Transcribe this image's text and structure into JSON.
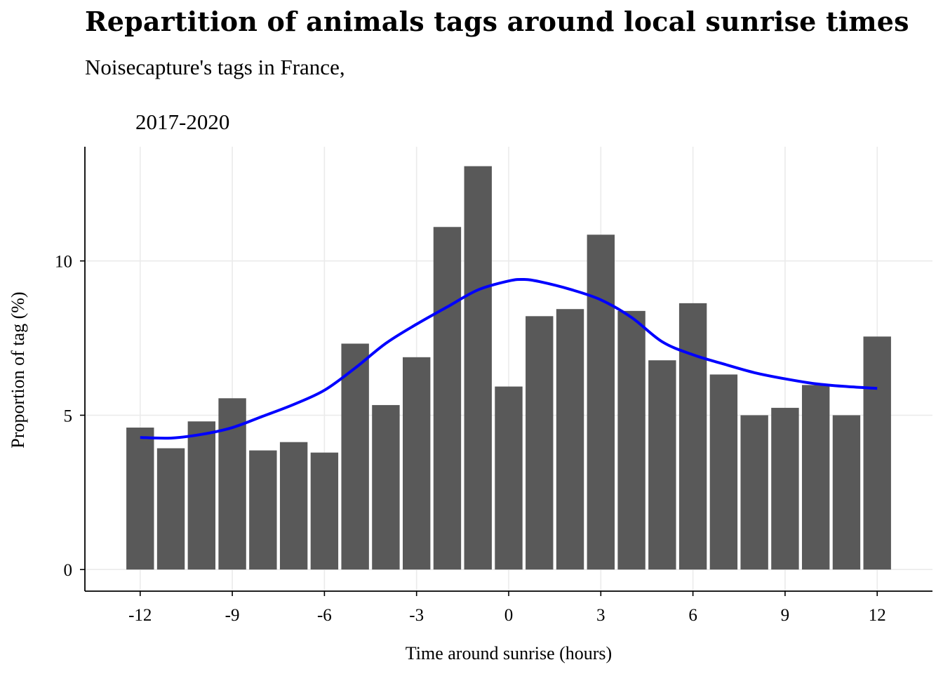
{
  "header": {
    "title": "Repartition of animals tags around local sunrise times",
    "subtitle_line1": "Noisecapture's tags in France,",
    "subtitle_line2": "2017-2020"
  },
  "colors": {
    "bar": "#595959",
    "smooth_line": "#0000ff",
    "grid": "#ebebeb",
    "axis": "#000000"
  },
  "chart_data": {
    "type": "bar",
    "title": "Repartition of animals tags around local sunrise times",
    "subtitle": "Noisecapture's tags in France, 2017-2020",
    "xlabel": "Time around sunrise (hours)",
    "ylabel": "Proportion of tag (%)",
    "xlim": [
      -13.8,
      13.8
    ],
    "ylim": [
      -0.7,
      13.7
    ],
    "x_ticks": [
      -12,
      -9,
      -6,
      -3,
      0,
      3,
      6,
      9,
      12
    ],
    "y_ticks": [
      0,
      5,
      10
    ],
    "x_tick_labels": [
      "-12",
      "-9",
      "-6",
      "-3",
      "0",
      "3",
      "6",
      "9",
      "12"
    ],
    "y_tick_labels": [
      "0",
      "5",
      "10"
    ],
    "grid": true,
    "x": [
      -12,
      -11,
      -10,
      -9,
      -8,
      -7,
      -6,
      -5,
      -4,
      -3,
      -2,
      -1,
      0,
      1,
      2,
      3,
      4,
      5,
      6,
      7,
      8,
      9,
      10,
      11,
      12
    ],
    "values": [
      4.6,
      3.93,
      4.8,
      5.55,
      3.86,
      4.13,
      3.79,
      7.32,
      5.33,
      6.88,
      11.1,
      13.07,
      5.93,
      8.21,
      8.44,
      10.85,
      8.38,
      6.78,
      8.63,
      6.32,
      5.0,
      5.24,
      5.98,
      5.0,
      7.55
    ],
    "smooth": {
      "x": [
        -12,
        -11,
        -10,
        -9,
        -8,
        -7,
        -6,
        -5,
        -4,
        -3,
        -2,
        -1,
        0,
        0.5,
        1,
        2,
        3,
        4,
        5,
        6,
        7,
        8,
        9,
        10,
        11,
        12
      ],
      "y": [
        4.28,
        4.26,
        4.38,
        4.6,
        4.97,
        5.35,
        5.81,
        6.53,
        7.33,
        7.95,
        8.51,
        9.06,
        9.35,
        9.4,
        9.33,
        9.08,
        8.74,
        8.17,
        7.38,
        6.96,
        6.66,
        6.38,
        6.18,
        6.02,
        5.93,
        5.87
      ]
    }
  }
}
